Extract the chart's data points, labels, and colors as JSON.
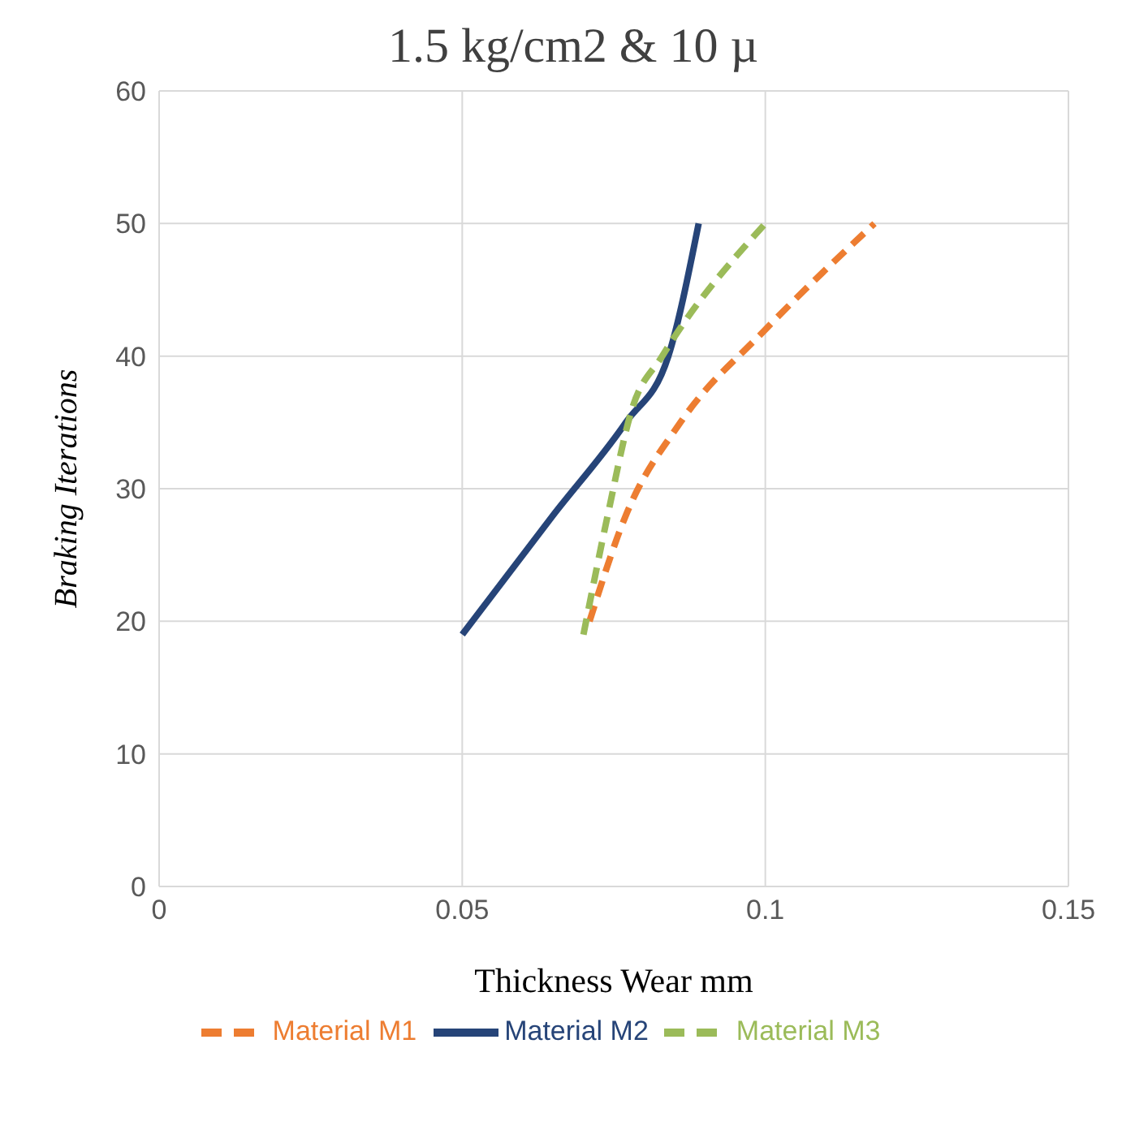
{
  "chart_data": {
    "type": "line",
    "title": "1.5 kg/cm2 & 10 µ",
    "xlabel": "Thickness Wear mm",
    "ylabel": "Braking Iterations",
    "xlim": [
      0,
      0.15
    ],
    "xticks": [
      0,
      0.05,
      0.1,
      0.15
    ],
    "ylim": [
      0,
      60
    ],
    "yticks": [
      0,
      10,
      20,
      30,
      40,
      50,
      60
    ],
    "grid": true,
    "legend": "bottom",
    "marker": "none",
    "series": [
      {
        "name": "Material M1",
        "color": "#ed7d31",
        "line_style": "dashed",
        "x": [
          0.071,
          0.077,
          0.086,
          0.1,
          0.118
        ],
        "values": [
          20,
          28,
          35,
          42,
          50
        ]
      },
      {
        "name": "Material M2",
        "color": "#264478",
        "line_style": "solid",
        "x": [
          0.05,
          0.065,
          0.077,
          0.084,
          0.089
        ],
        "values": [
          19,
          28,
          35,
          40,
          50
        ]
      },
      {
        "name": "Material M3",
        "color": "#9bbb59",
        "line_style": "dashed",
        "x": [
          0.07,
          0.074,
          0.078,
          0.083,
          0.1
        ],
        "values": [
          19,
          28,
          36,
          40,
          50
        ]
      }
    ]
  }
}
